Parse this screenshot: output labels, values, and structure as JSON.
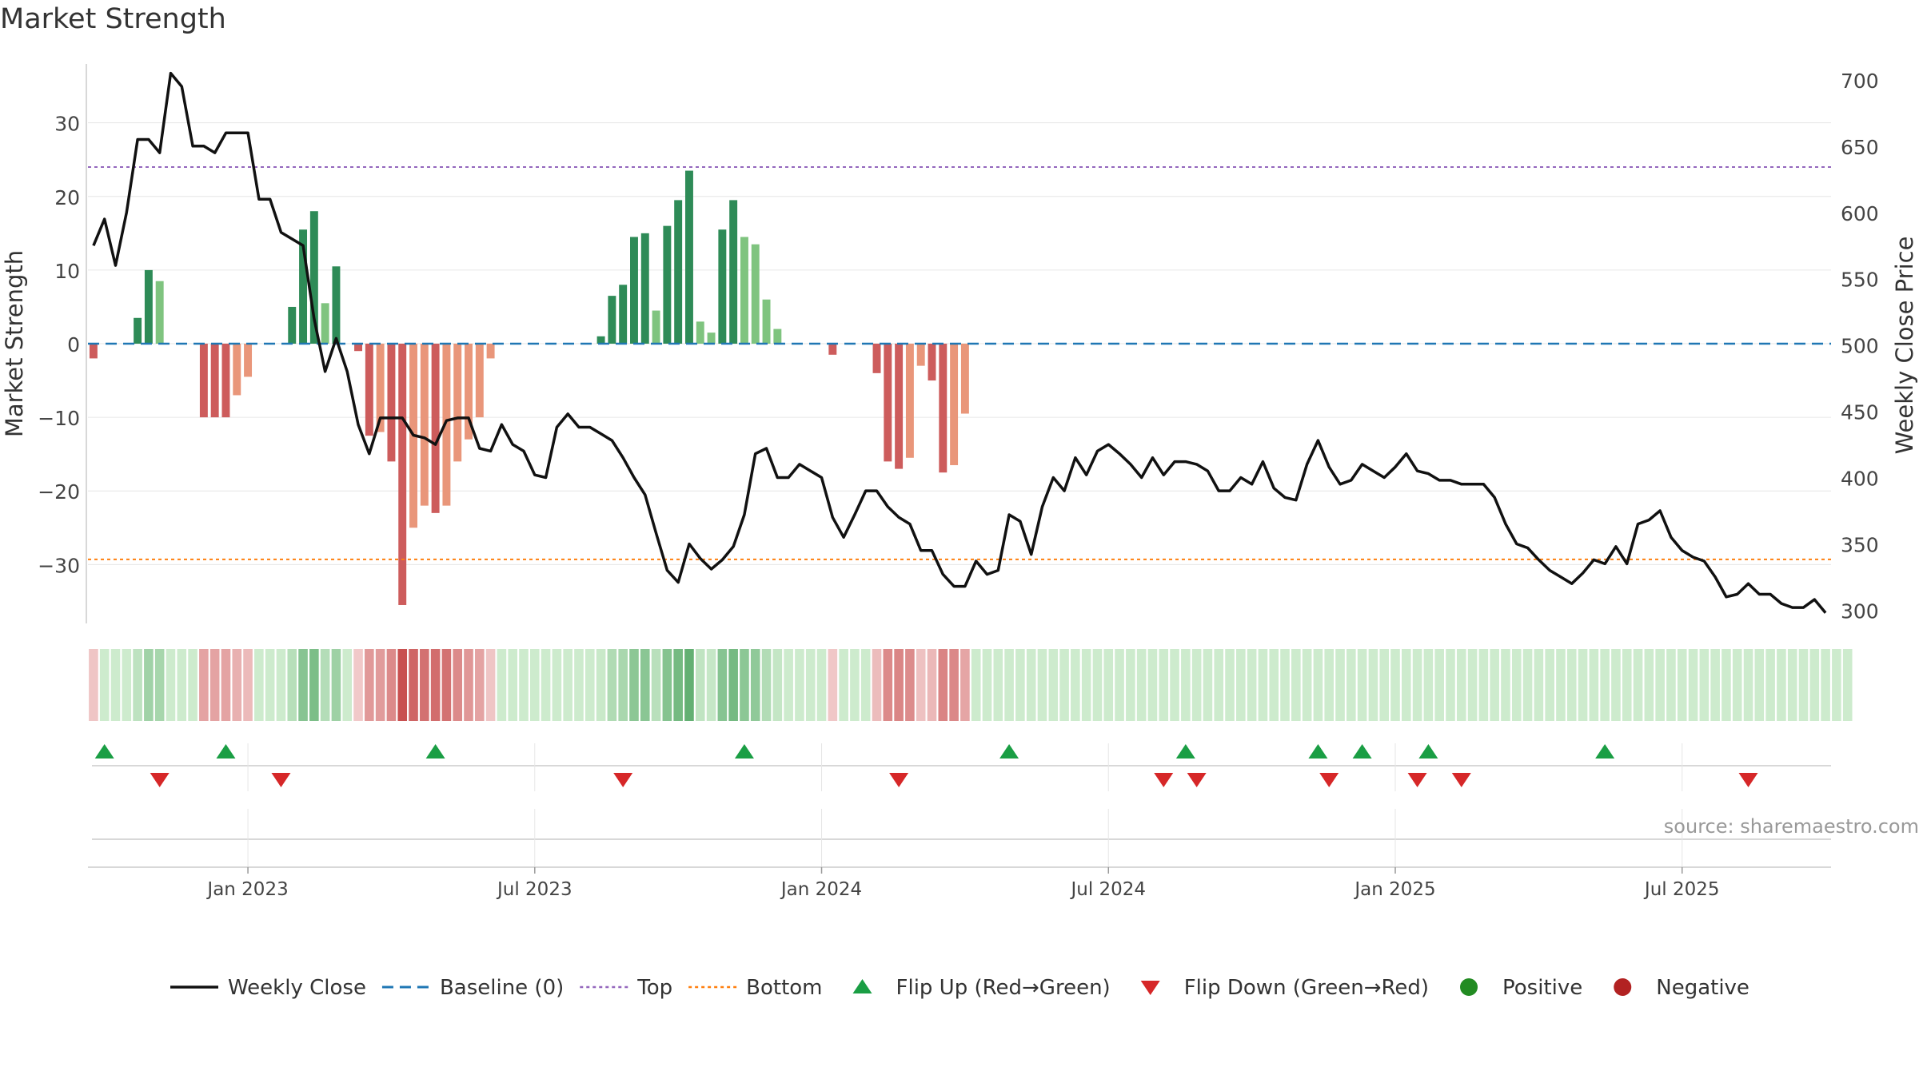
{
  "chart_data": {
    "title": "Market Strength",
    "type": "bar",
    "left_axis": {
      "label": "Market Strength",
      "ylim": [
        -38,
        38
      ],
      "ticks": [
        30,
        20,
        10,
        0,
        -10,
        -20,
        -30
      ],
      "tick_labels": [
        "30",
        "20",
        "10",
        "0",
        "−10",
        "−20",
        "−30"
      ]
    },
    "right_axis": {
      "label": "Weekly Close Price",
      "ylim": [
        290,
        712
      ],
      "ticks": [
        700,
        650,
        600,
        550,
        500,
        450,
        400,
        350,
        300
      ],
      "tick_labels": [
        "700",
        "650",
        "600",
        "550",
        "500",
        "450",
        "400",
        "350",
        "300"
      ]
    },
    "x_axis": {
      "tick_labels": [
        "Jan 2023",
        "Jul 2023",
        "Jan 2024",
        "Jul 2024",
        "Jan 2025",
        "Jul 2025"
      ],
      "tick_weeks": [
        14,
        40,
        66,
        92,
        118,
        144
      ]
    },
    "top_threshold": 24,
    "bottom_threshold": -29.3,
    "baseline": 0,
    "weeks": 158,
    "strength": [
      -2,
      0,
      0,
      0,
      3.5,
      10,
      8.5,
      0,
      0,
      0,
      -10,
      -10,
      -10,
      -7,
      -4.5,
      0,
      0,
      0,
      5,
      15.5,
      18,
      5.5,
      10.5,
      0,
      -1,
      -12.5,
      -12,
      -16,
      -35.5,
      -25,
      -22,
      -23,
      -22,
      -16,
      -13,
      -10,
      -2,
      0,
      0,
      0,
      0,
      0,
      0,
      0,
      0,
      0,
      1,
      6.5,
      8,
      14.5,
      15,
      4.5,
      16,
      19.5,
      23.5,
      3,
      1.5,
      15.5,
      19.5,
      14.5,
      13.5,
      6,
      2,
      0,
      0,
      0,
      0,
      -1.5,
      0,
      0,
      0,
      -4,
      -16,
      -17,
      -15.5,
      -3,
      -5,
      -17.5,
      -16.5,
      -9.5,
      0,
      0,
      0,
      0,
      0,
      0,
      0,
      0,
      0,
      0,
      0,
      0,
      0,
      0,
      0,
      0,
      0,
      0,
      0,
      0,
      0,
      0,
      0,
      0,
      0,
      0,
      0,
      0,
      0,
      0,
      0,
      0,
      0,
      0,
      0,
      0,
      0,
      0,
      0,
      0,
      0,
      0,
      0,
      0,
      0,
      0,
      0,
      0,
      0,
      0,
      0,
      0,
      0,
      0,
      0,
      0,
      0,
      0,
      0,
      0,
      0,
      0,
      0,
      0,
      0,
      0,
      0,
      0,
      0,
      0,
      0,
      0,
      0,
      0,
      0,
      0,
      0,
      0,
      0,
      0
    ],
    "close": [
      575,
      595,
      560,
      600,
      655,
      655,
      645,
      705,
      695,
      650,
      650,
      645,
      660,
      660,
      660,
      610,
      610,
      585,
      580,
      575,
      520,
      480,
      505,
      480,
      440,
      418,
      445,
      445,
      445,
      432,
      430,
      425,
      443,
      445,
      445,
      422,
      420,
      440,
      425,
      420,
      402,
      400,
      438,
      448,
      438,
      438,
      433,
      428,
      415,
      400,
      387,
      358,
      330,
      321,
      350,
      339,
      331,
      338,
      348,
      372,
      418,
      422,
      400,
      400,
      410,
      405,
      400,
      370,
      355,
      372,
      390,
      390,
      378,
      370,
      365,
      345,
      345,
      327,
      318,
      318,
      337,
      327,
      330,
      372,
      367,
      342,
      378,
      400,
      390,
      415,
      402,
      420,
      425,
      418,
      410,
      400,
      415,
      402,
      412,
      412,
      410,
      405,
      390,
      390,
      400,
      395,
      412,
      392,
      385,
      383,
      410,
      428,
      408,
      395,
      398,
      410,
      405,
      400,
      408,
      418,
      405,
      403,
      398,
      398,
      395,
      395,
      395,
      385,
      365,
      350,
      347,
      338,
      330,
      325,
      320,
      328,
      338,
      335,
      348,
      335,
      365,
      368,
      375,
      355,
      345,
      340,
      337,
      325,
      310,
      312,
      320,
      312,
      312,
      305,
      302,
      302,
      308,
      298
    ],
    "heatmap_colors_note": "each week cell shaded by strength sign and magnitude",
    "flip_up_weeks": [
      1,
      12,
      31,
      59,
      83,
      99,
      111,
      115,
      121,
      137
    ],
    "flip_down_weeks": [
      6,
      17,
      48,
      73,
      97,
      100,
      112,
      120,
      124,
      150
    ],
    "legend": [
      "Weekly Close",
      "Baseline (0)",
      "Top",
      "Bottom",
      "Flip Up (Red→Green)",
      "Flip Down (Green→Red)",
      "Positive",
      "Negative"
    ],
    "legend_position": "bottom-center",
    "colors": {
      "pos_strong": "#2e8b57",
      "pos_weak": "#7fc47f",
      "neg_strong": "#cd5c5c",
      "neg_weak": "#e9967a",
      "close_line": "#111111",
      "baseline": "#1f77b4",
      "top": "#9467bd",
      "bottom": "#ff7f0e",
      "flip_up": "#1a9e44",
      "flip_down": "#d62728",
      "positive": "#228b22",
      "negative": "#b22222",
      "grid": "#e6e6e6",
      "axis_text": "#444444"
    }
  },
  "source": "source: sharemaestro.com"
}
